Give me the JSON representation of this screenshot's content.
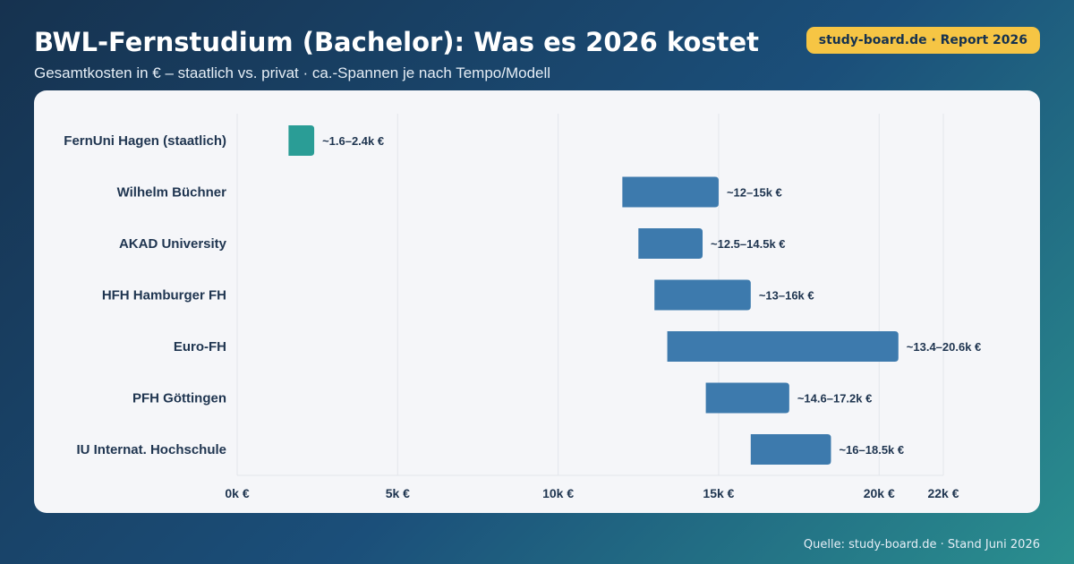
{
  "header": {
    "title": "BWL-Fernstudium (Bachelor): Was es 2026 kostet",
    "subtitle": "Gesamtkosten in € – staatlich vs. privat · ca.-Spannen je nach Tempo/Modell",
    "badge": "study-board.de · Report 2026"
  },
  "footer": {
    "source": "Quelle: study-board.de · Stand Juni 2026"
  },
  "colors": {
    "staatlich": "#2a9d96",
    "privat": "#3d7aad",
    "grid": "#e3e6ec"
  },
  "chart_data": {
    "type": "bar",
    "orientation": "horizontal-range",
    "xlim": [
      0,
      22000
    ],
    "ticks": [
      {
        "value": 0,
        "label": "0k €"
      },
      {
        "value": 5000,
        "label": "5k €"
      },
      {
        "value": 10000,
        "label": "10k €"
      },
      {
        "value": 15000,
        "label": "15k €"
      },
      {
        "value": 20000,
        "label": "20k €"
      },
      {
        "value": 22000,
        "label": "22k €"
      }
    ],
    "grid": true,
    "categories": [
      "FernUni Hagen (staatlich)",
      "Wilhelm Büchner",
      "AKAD University",
      "HFH Hamburger FH",
      "Euro-FH",
      "PFH Göttingen",
      "IU Internat. Hochschule"
    ],
    "ranges": [
      {
        "min": 1600,
        "max": 2400,
        "label": "~1.6–2.4k €",
        "kind": "staatlich"
      },
      {
        "min": 12000,
        "max": 15000,
        "label": "~12–15k €",
        "kind": "privat"
      },
      {
        "min": 12500,
        "max": 14500,
        "label": "~12.5–14.5k €",
        "kind": "privat"
      },
      {
        "min": 13000,
        "max": 16000,
        "label": "~13–16k €",
        "kind": "privat"
      },
      {
        "min": 13400,
        "max": 20600,
        "label": "~13.4–20.6k €",
        "kind": "privat"
      },
      {
        "min": 14600,
        "max": 17200,
        "label": "~14.6–17.2k €",
        "kind": "privat"
      },
      {
        "min": 16000,
        "max": 18500,
        "label": "~16–18.5k €",
        "kind": "privat"
      }
    ]
  }
}
